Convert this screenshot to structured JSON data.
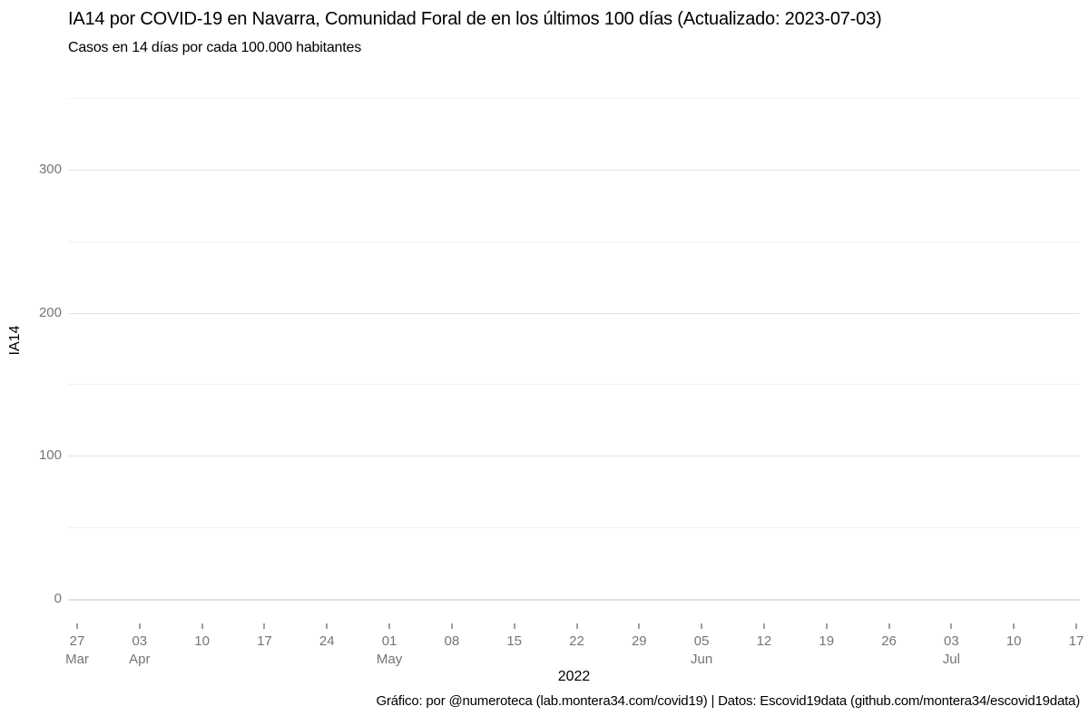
{
  "header": {
    "title": "IA14 por COVID-19 en Navarra, Comunidad Foral de en los últimos 100 días (Actualizado: 2023-07-03)",
    "subtitle": "Casos en 14 días por cada 100.000 habitantes"
  },
  "axes": {
    "y_title": "IA14",
    "x_title": "2022"
  },
  "footer": {
    "credit": "Gráfico: por @numeroteca (lab.montera34.com/covid19) | Datos: Escovid19data (github.com/montera34/escovid19data)"
  },
  "colors": {
    "major_gridline": "#e2e2e2",
    "minor_gridline": "#f2f2f2",
    "axis_text": "#757575",
    "text": "#000000",
    "background": "#ffffff"
  },
  "chart_data": {
    "type": "line",
    "title": "IA14 por COVID-19 en Navarra, Comunidad Foral de en los últimos 100 días (Actualizado: 2023-07-03)",
    "subtitle": "Casos en 14 días por cada 100.000 habitantes",
    "xlabel": "2022",
    "ylabel": "IA14",
    "ylim": [
      0,
      355
    ],
    "grid": true,
    "legend": false,
    "series": [],
    "y_ticks": [
      0,
      100,
      200,
      300
    ],
    "y_minor_ticks": [
      50,
      150,
      250,
      350
    ],
    "x_ticks": [
      {
        "day": "27",
        "month": "Mar"
      },
      {
        "day": "03",
        "month": "Apr"
      },
      {
        "day": "10",
        "month": ""
      },
      {
        "day": "17",
        "month": ""
      },
      {
        "day": "24",
        "month": ""
      },
      {
        "day": "01",
        "month": "May"
      },
      {
        "day": "08",
        "month": ""
      },
      {
        "day": "15",
        "month": ""
      },
      {
        "day": "22",
        "month": ""
      },
      {
        "day": "29",
        "month": ""
      },
      {
        "day": "05",
        "month": "Jun"
      },
      {
        "day": "12",
        "month": ""
      },
      {
        "day": "19",
        "month": ""
      },
      {
        "day": "26",
        "month": ""
      },
      {
        "day": "03",
        "month": "Jul"
      },
      {
        "day": "10",
        "month": ""
      },
      {
        "day": "17",
        "month": ""
      }
    ]
  }
}
